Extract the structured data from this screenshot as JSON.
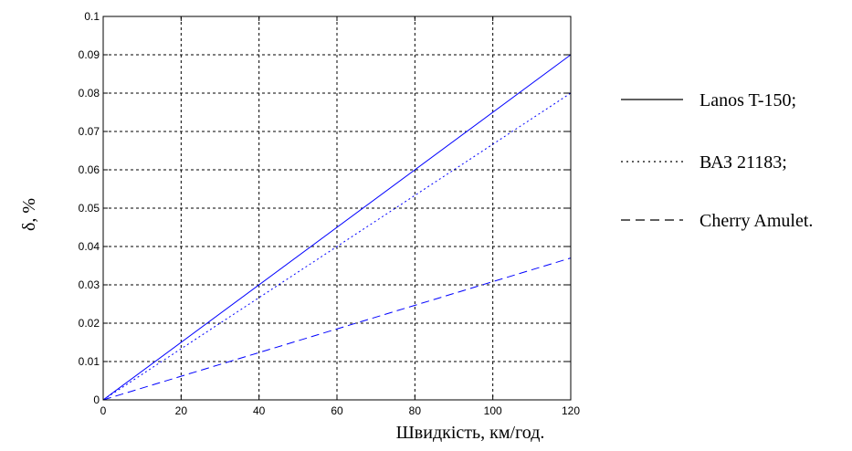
{
  "chart_data": {
    "type": "line",
    "title": "",
    "xlabel": "Швидкість, км/год.",
    "ylabel": "δ, %",
    "xlim": [
      0,
      120
    ],
    "ylim": [
      0,
      0.1
    ],
    "x_ticks": [
      "0",
      "20",
      "40",
      "60",
      "80",
      "100",
      "120"
    ],
    "y_ticks": [
      "0",
      "0.01",
      "0.02",
      "0.03",
      "0.04",
      "0.05",
      "0.06",
      "0.07",
      "0.08",
      "0.09",
      "0.1"
    ],
    "grid": true,
    "legend_position": "right",
    "x": [
      0,
      120
    ],
    "series": [
      {
        "name": "Lanos T-150;",
        "values": [
          0,
          0.09
        ],
        "line_style": "solid",
        "color": "#0000ff"
      },
      {
        "name": "ВАЗ 21183;",
        "values": [
          0,
          0.08
        ],
        "line_style": "dotted",
        "color": "#0000ff"
      },
      {
        "name": "Cherry Amulet.",
        "values": [
          0,
          0.037
        ],
        "line_style": "dashed",
        "color": "#0000ff"
      }
    ]
  }
}
